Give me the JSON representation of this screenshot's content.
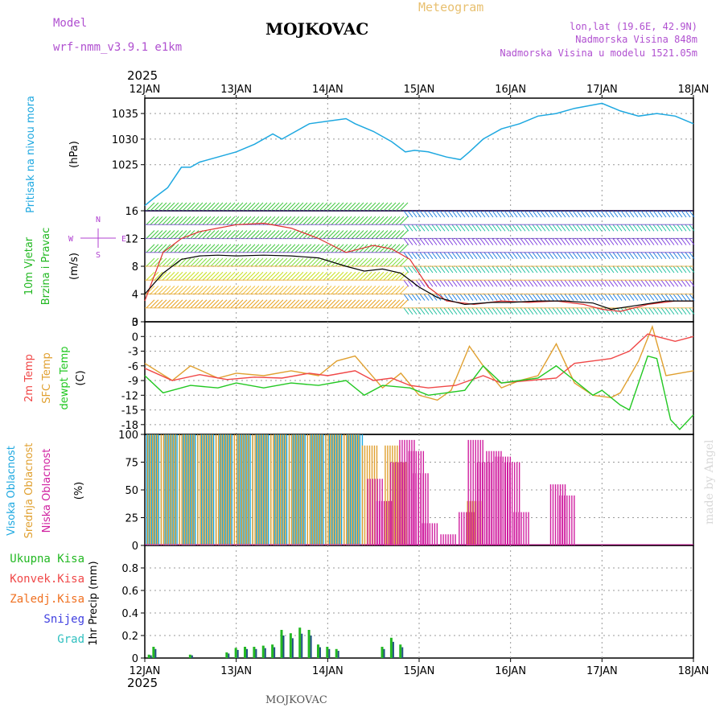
{
  "header": {
    "model_label": "Model",
    "model_name": "wrf-nmm_v3.9.1 e1km",
    "station": "MOJKOVAC",
    "product": "Meteogram",
    "coords": "lon,lat (19.6E, 42.9N)",
    "elevation": "Nadmorska Visina 848m",
    "model_elevation": "Nadmorska Visina u modelu 1521.05m",
    "year_top": "2025",
    "year_bottom": "2025",
    "footer_station": "MOJKOVAC",
    "credit": "made by Angel"
  },
  "colors": {
    "pressure": "#1ea8e0",
    "mslp_label": "#1ea8e0",
    "wind_label": "#22b822",
    "wind_dir_label": "#b040d0",
    "temp2m": "#f04848",
    "sfc_temp": "#e0a030",
    "dewpt": "#22c822",
    "cloud_high": "#1ea8e0",
    "cloud_mid": "#e0a030",
    "cloud_low": "#d020a0",
    "precip_total": "#22b822",
    "precip_conv": "#f04848",
    "precip_frz": "#f07020",
    "snow": "#4040e0",
    "hail": "#30c0c0",
    "title_purple": "#b050d0",
    "meteogram": "#e8c070"
  },
  "chart_data": [
    {
      "type": "line",
      "panel": "pressure",
      "ylabel_lines": [
        "Pritisak na nivou mora",
        "(hPa)"
      ],
      "x_ticks": [
        "12JAN",
        "13JAN",
        "14JAN",
        "15JAN",
        "16JAN",
        "17JAN",
        "18JAN"
      ],
      "ylim": [
        1016,
        1038
      ],
      "y_ticks": [
        1025,
        1030,
        1035
      ],
      "grid": true,
      "series": [
        {
          "x": [
            0,
            0.1,
            0.25,
            0.4,
            0.5,
            0.6,
            0.8,
            1.0,
            1.2,
            1.4,
            1.5,
            1.6,
            1.8,
            2.0,
            2.2,
            2.3,
            2.5,
            2.7,
            2.85,
            2.95,
            3.1,
            3.3,
            3.45,
            3.55,
            3.7,
            3.9,
            4.1,
            4.3,
            4.5,
            4.7,
            5.0,
            5.2,
            5.4,
            5.6,
            5.8,
            6.0
          ],
          "y": [
            1017,
            1018.5,
            1020.5,
            1024.5,
            1024.5,
            1025.5,
            1026.5,
            1027.5,
            1029,
            1031,
            1030,
            1031,
            1033,
            1033.5,
            1034,
            1033,
            1031.5,
            1029.5,
            1027.5,
            1027.8,
            1027.5,
            1026.5,
            1026,
            1027.5,
            1030,
            1032,
            1033,
            1034.5,
            1035,
            1036,
            1037,
            1035.5,
            1034.5,
            1035,
            1034.5,
            1033
          ]
        }
      ]
    },
    {
      "type": "line",
      "panel": "wind",
      "ylabel_lines": [
        "10m Vjetar",
        "Brzina i Pravac",
        "(m/s)"
      ],
      "dir_compass": [
        "N",
        "S",
        "W",
        "E"
      ],
      "ylim": [
        0,
        16
      ],
      "y_ticks": [
        0,
        4,
        8,
        12,
        16
      ],
      "grid": true,
      "levels": [
        2,
        4,
        6,
        8,
        10,
        12,
        14,
        16
      ],
      "series": [
        {
          "name": "",
          "x": [
            0,
            0.2,
            0.4,
            0.6,
            0.8,
            1.0,
            1.3,
            1.6,
            1.9,
            2.2,
            2.4,
            2.6,
            2.8,
            3.0,
            3.2,
            3.5,
            3.8,
            4.0,
            4.3,
            4.6,
            4.9,
            5.1,
            5.4,
            5.7,
            6.0
          ],
          "y": [
            4,
            7,
            9,
            9.5,
            9.6,
            9.5,
            9.6,
            9.5,
            9.2,
            8,
            7.3,
            7.6,
            7,
            5,
            3.5,
            2.5,
            2.8,
            2.8,
            3,
            3,
            2.7,
            1.8,
            2.4,
            3,
            3
          ]
        },
        {
          "name": "",
          "x": [
            0,
            0.2,
            0.4,
            0.6,
            0.8,
            1.0,
            1.3,
            1.6,
            1.9,
            2.2,
            2.5,
            2.7,
            2.9,
            3.1,
            3.3,
            3.6,
            3.9,
            4.2,
            4.5,
            4.8,
            5.0,
            5.2,
            5.5,
            5.8,
            6.0
          ],
          "y": [
            3,
            10,
            12,
            13,
            13.5,
            14,
            14.2,
            13.5,
            12,
            10,
            11,
            10.5,
            9,
            5,
            3,
            2.5,
            3,
            2.8,
            3,
            2.5,
            1.8,
            1.5,
            2.5,
            3,
            3
          ]
        }
      ]
    },
    {
      "type": "line",
      "panel": "temperature",
      "ylabel_lines": [
        "2m Temp",
        "SFC Temp",
        "dewpt Temp",
        "(C)"
      ],
      "ylim": [
        -20,
        3
      ],
      "y_ticks": [
        -18,
        -15,
        -12,
        -9,
        -6,
        -3,
        0,
        3
      ],
      "grid": true,
      "series": [
        {
          "name": "2m Temp",
          "x": [
            0,
            0.3,
            0.6,
            0.9,
            1.2,
            1.5,
            1.8,
            2.0,
            2.3,
            2.5,
            2.7,
            2.9,
            3.1,
            3.4,
            3.7,
            3.9,
            4.2,
            4.5,
            4.7,
            4.9,
            5.1,
            5.3,
            5.5,
            5.6,
            5.8,
            6.0
          ],
          "y": [
            -6.5,
            -9,
            -7.8,
            -8.8,
            -8.3,
            -8.5,
            -7.5,
            -8,
            -7,
            -9,
            -8.5,
            -10,
            -10.5,
            -10,
            -8,
            -9.5,
            -9,
            -8.5,
            -5.5,
            -5,
            -4.5,
            -3,
            0.5,
            0,
            -1,
            0
          ]
        },
        {
          "name": "SFC Temp",
          "x": [
            0,
            0.3,
            0.5,
            0.8,
            1.0,
            1.3,
            1.6,
            1.9,
            2.1,
            2.3,
            2.6,
            2.8,
            3.0,
            3.2,
            3.35,
            3.55,
            3.7,
            3.9,
            4.1,
            4.3,
            4.5,
            4.7,
            4.9,
            5.1,
            5.2,
            5.4,
            5.55,
            5.7,
            6.0
          ],
          "y": [
            -5.5,
            -9,
            -6,
            -8.5,
            -7.5,
            -8,
            -7,
            -8,
            -5,
            -4,
            -10.5,
            -7.5,
            -12,
            -13,
            -11,
            -2,
            -6,
            -10.5,
            -9,
            -8,
            -1.5,
            -9.5,
            -12,
            -12.5,
            -11.5,
            -5,
            2,
            -8,
            -7
          ]
        },
        {
          "name": "dewpt Temp",
          "x": [
            0,
            0.2,
            0.5,
            0.8,
            1.0,
            1.3,
            1.6,
            1.9,
            2.2,
            2.4,
            2.6,
            2.9,
            3.1,
            3.3,
            3.5,
            3.7,
            3.9,
            4.1,
            4.3,
            4.5,
            4.7,
            4.9,
            5.0,
            5.2,
            5.3,
            5.5,
            5.6,
            5.75,
            5.85,
            6.0
          ],
          "y": [
            -8,
            -11.5,
            -10,
            -10.5,
            -9.5,
            -10.5,
            -9.5,
            -10,
            -9,
            -12,
            -10,
            -10.5,
            -12,
            -11.5,
            -11,
            -6,
            -9.5,
            -9,
            -8.5,
            -6,
            -9,
            -12,
            -11,
            -14,
            -15,
            -4,
            -4.5,
            -17,
            -19,
            -16
          ]
        }
      ]
    },
    {
      "type": "bar",
      "panel": "clouds",
      "ylabel_lines": [
        "Visoka Oblacnost",
        "Srednja Oblacnost",
        "Niska Oblacnost",
        "(%)"
      ],
      "ylim": [
        0,
        100
      ],
      "y_ticks": [
        0,
        25,
        50,
        75,
        100
      ],
      "grid": true,
      "series": [
        {
          "name": "Visoka Oblacnost",
          "x": [
            0.1,
            0.3,
            0.5,
            0.7,
            0.9,
            1.1,
            1.3,
            1.5,
            1.7,
            1.9,
            2.1,
            2.3
          ],
          "values": [
            100,
            100,
            100,
            100,
            100,
            100,
            100,
            100,
            100,
            100,
            100,
            100
          ]
        },
        {
          "name": "Srednja Oblacnost",
          "x": [
            0.05,
            0.25,
            0.45,
            0.65,
            0.85,
            1.05,
            1.25,
            1.45,
            1.65,
            1.85,
            2.05,
            2.25,
            2.45,
            2.7,
            2.8,
            3.6
          ],
          "values": [
            100,
            100,
            100,
            100,
            100,
            100,
            100,
            100,
            100,
            100,
            100,
            100,
            90,
            90,
            75,
            40
          ]
        },
        {
          "name": "Niska Oblacnost",
          "x": [
            2.5,
            2.6,
            2.75,
            2.85,
            2.95,
            3.0,
            3.1,
            3.3,
            3.5,
            3.6,
            3.7,
            3.8,
            3.9,
            4.0,
            4.1,
            4.5,
            4.6
          ],
          "values": [
            60,
            40,
            75,
            95,
            85,
            65,
            20,
            10,
            30,
            95,
            75,
            85,
            80,
            75,
            30,
            55,
            45
          ]
        }
      ]
    },
    {
      "type": "bar",
      "panel": "precip",
      "ylabel_lines": [
        "Ukupna Kisa",
        "Konvek.Kisa",
        "Zaledj.Kisa",
        "Snijeg",
        "Grad",
        "1hr Precip (mm)"
      ],
      "ylim": [
        0,
        1.0
      ],
      "y_ticks": [
        0,
        0.2,
        0.4,
        0.6,
        0.8
      ],
      "grid": true,
      "series": [
        {
          "name": "Ukupna Kisa",
          "x": [
            0.05,
            0.1,
            0.5,
            0.9,
            1.0,
            1.1,
            1.2,
            1.3,
            1.4,
            1.5,
            1.6,
            1.7,
            1.8,
            1.9,
            2.0,
            2.1,
            2.6,
            2.7,
            2.8
          ],
          "values": [
            0.03,
            0.1,
            0.03,
            0.05,
            0.09,
            0.1,
            0.1,
            0.11,
            0.12,
            0.25,
            0.22,
            0.27,
            0.25,
            0.12,
            0.1,
            0.08,
            0.1,
            0.18,
            0.12
          ]
        }
      ]
    }
  ]
}
